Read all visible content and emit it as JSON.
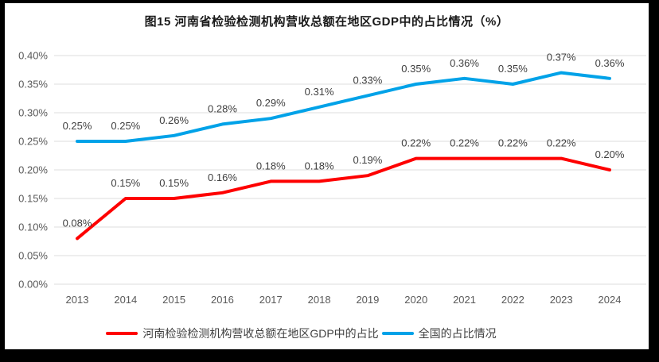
{
  "page": {
    "frame_color": "#000000",
    "background_color": "#ffffff"
  },
  "title": "图15  河南省检验检测机构营收总额在地区GDP中的占比情况（%）",
  "legend": {
    "items": [
      {
        "label": "河南检验检测机构营收总额在地区GDP中的占比",
        "color": "#FE0000"
      },
      {
        "label": "全国的占比情况",
        "color": "#00A2E8"
      }
    ],
    "position": "bottom"
  },
  "chart_data": {
    "type": "line",
    "title": "图15  河南省检验检测机构营收总额在地区GDP中的占比情况（%）",
    "categories": [
      "2013",
      "2014",
      "2015",
      "2016",
      "2017",
      "2018",
      "2019",
      "2020",
      "2021",
      "2022",
      "2023",
      "2024"
    ],
    "series": [
      {
        "name": "河南检验检测机构营收总额在地区GDP中的占比",
        "color": "#FE0000",
        "values": [
          0.08,
          0.15,
          0.15,
          0.16,
          0.18,
          0.18,
          0.19,
          0.22,
          0.22,
          0.22,
          0.22,
          0.2
        ],
        "labels": [
          "0.08%",
          "0.15%",
          "0.15%",
          "0.16%",
          "0.18%",
          "0.18%",
          "0.19%",
          "0.22%",
          "0.22%",
          "0.22%",
          "0.22%",
          "0.20%"
        ]
      },
      {
        "name": "全国的占比情况",
        "color": "#00A2E8",
        "values": [
          0.25,
          0.25,
          0.26,
          0.28,
          0.29,
          0.31,
          0.33,
          0.35,
          0.36,
          0.35,
          0.37,
          0.36
        ],
        "labels": [
          "0.25%",
          "0.25%",
          "0.26%",
          "0.28%",
          "0.29%",
          "0.31%",
          "0.33%",
          "0.35%",
          "0.36%",
          "0.35%",
          "0.37%",
          "0.36%"
        ]
      }
    ],
    "xlabel": "",
    "ylabel": "",
    "ylim": [
      0.0,
      0.4
    ],
    "ytick_step": 0.05,
    "ytick_labels": [
      "0.00%",
      "0.05%",
      "0.10%",
      "0.15%",
      "0.20%",
      "0.25%",
      "0.30%",
      "0.35%",
      "0.40%"
    ],
    "grid": true,
    "legend_position": "bottom",
    "colors": {
      "gridline": "#DCDCDC",
      "axis_text": "#595959",
      "data_label_text": "#404040",
      "title_text": "#1a1a1a"
    }
  }
}
